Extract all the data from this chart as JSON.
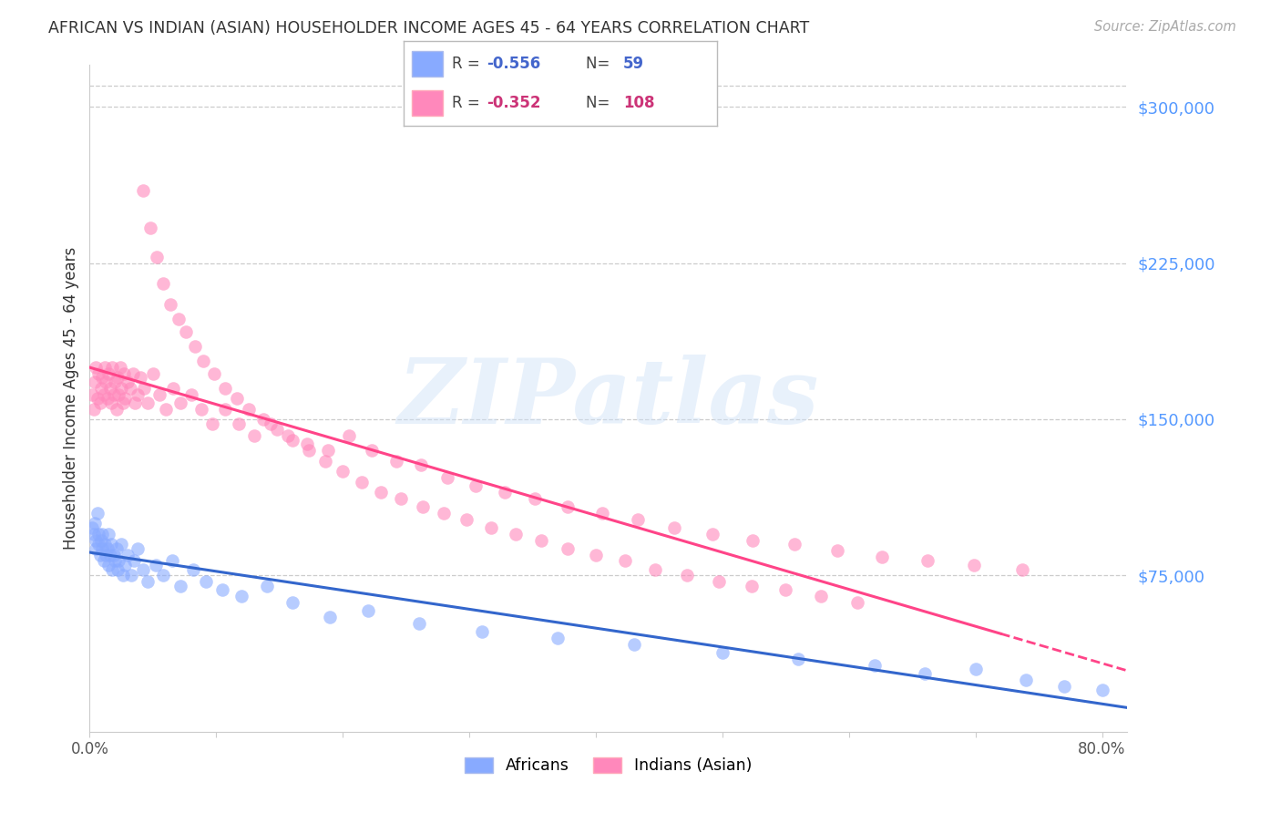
{
  "title": "AFRICAN VS INDIAN (ASIAN) HOUSEHOLDER INCOME AGES 45 - 64 YEARS CORRELATION CHART",
  "source": "Source: ZipAtlas.com",
  "ylabel": "Householder Income Ages 45 - 64 years",
  "ytick_labels": [
    "$75,000",
    "$150,000",
    "$225,000",
    "$300,000"
  ],
  "ytick_values": [
    75000,
    150000,
    225000,
    300000
  ],
  "ylim": [
    0,
    320000
  ],
  "xlim": [
    0.0,
    0.82
  ],
  "watermark": "ZIPatlas",
  "african_R": "-0.556",
  "african_N": "59",
  "indian_R": "-0.352",
  "indian_N": "108",
  "african_color": "#88aaff",
  "indian_color": "#ff88bb",
  "african_line_color": "#3366cc",
  "indian_line_color": "#ff4488",
  "scatter_alpha": 0.6,
  "scatter_size": 110,
  "african_x": [
    0.002,
    0.003,
    0.004,
    0.005,
    0.005,
    0.006,
    0.007,
    0.007,
    0.008,
    0.009,
    0.01,
    0.01,
    0.011,
    0.012,
    0.013,
    0.014,
    0.015,
    0.015,
    0.016,
    0.017,
    0.018,
    0.019,
    0.02,
    0.021,
    0.022,
    0.023,
    0.025,
    0.026,
    0.028,
    0.03,
    0.033,
    0.035,
    0.038,
    0.042,
    0.046,
    0.052,
    0.058,
    0.065,
    0.072,
    0.082,
    0.092,
    0.105,
    0.12,
    0.14,
    0.16,
    0.19,
    0.22,
    0.26,
    0.31,
    0.37,
    0.43,
    0.5,
    0.56,
    0.62,
    0.66,
    0.7,
    0.74,
    0.77,
    0.8
  ],
  "african_y": [
    98000,
    95000,
    100000,
    92000,
    88000,
    105000,
    95000,
    90000,
    85000,
    92000,
    88000,
    95000,
    82000,
    90000,
    85000,
    88000,
    95000,
    80000,
    85000,
    90000,
    78000,
    85000,
    82000,
    88000,
    78000,
    82000,
    90000,
    75000,
    80000,
    85000,
    75000,
    82000,
    88000,
    78000,
    72000,
    80000,
    75000,
    82000,
    70000,
    78000,
    72000,
    68000,
    65000,
    70000,
    62000,
    55000,
    58000,
    52000,
    48000,
    45000,
    42000,
    38000,
    35000,
    32000,
    28000,
    30000,
    25000,
    22000,
    20000
  ],
  "indian_x": [
    0.002,
    0.003,
    0.004,
    0.005,
    0.006,
    0.007,
    0.008,
    0.009,
    0.01,
    0.011,
    0.012,
    0.013,
    0.014,
    0.015,
    0.016,
    0.017,
    0.018,
    0.019,
    0.02,
    0.021,
    0.022,
    0.023,
    0.024,
    0.025,
    0.026,
    0.027,
    0.028,
    0.03,
    0.032,
    0.034,
    0.036,
    0.038,
    0.04,
    0.043,
    0.046,
    0.05,
    0.055,
    0.06,
    0.066,
    0.072,
    0.08,
    0.088,
    0.097,
    0.107,
    0.118,
    0.13,
    0.143,
    0.157,
    0.172,
    0.188,
    0.205,
    0.223,
    0.242,
    0.262,
    0.283,
    0.305,
    0.328,
    0.352,
    0.378,
    0.405,
    0.433,
    0.462,
    0.492,
    0.524,
    0.557,
    0.591,
    0.626,
    0.662,
    0.699,
    0.737,
    0.042,
    0.048,
    0.053,
    0.058,
    0.064,
    0.07,
    0.076,
    0.083,
    0.09,
    0.098,
    0.107,
    0.116,
    0.126,
    0.137,
    0.148,
    0.16,
    0.173,
    0.186,
    0.2,
    0.215,
    0.23,
    0.246,
    0.263,
    0.28,
    0.298,
    0.317,
    0.337,
    0.357,
    0.378,
    0.4,
    0.423,
    0.447,
    0.472,
    0.497,
    0.523,
    0.55,
    0.578,
    0.607
  ],
  "indian_y": [
    162000,
    155000,
    168000,
    175000,
    160000,
    172000,
    158000,
    165000,
    170000,
    162000,
    175000,
    168000,
    160000,
    172000,
    165000,
    158000,
    175000,
    162000,
    168000,
    155000,
    170000,
    162000,
    175000,
    165000,
    158000,
    172000,
    160000,
    168000,
    165000,
    172000,
    158000,
    162000,
    170000,
    165000,
    158000,
    172000,
    162000,
    155000,
    165000,
    158000,
    162000,
    155000,
    148000,
    155000,
    148000,
    142000,
    148000,
    142000,
    138000,
    135000,
    142000,
    135000,
    130000,
    128000,
    122000,
    118000,
    115000,
    112000,
    108000,
    105000,
    102000,
    98000,
    95000,
    92000,
    90000,
    87000,
    84000,
    82000,
    80000,
    78000,
    260000,
    242000,
    228000,
    215000,
    205000,
    198000,
    192000,
    185000,
    178000,
    172000,
    165000,
    160000,
    155000,
    150000,
    145000,
    140000,
    135000,
    130000,
    125000,
    120000,
    115000,
    112000,
    108000,
    105000,
    102000,
    98000,
    95000,
    92000,
    88000,
    85000,
    82000,
    78000,
    75000,
    72000,
    70000,
    68000,
    65000,
    62000
  ]
}
